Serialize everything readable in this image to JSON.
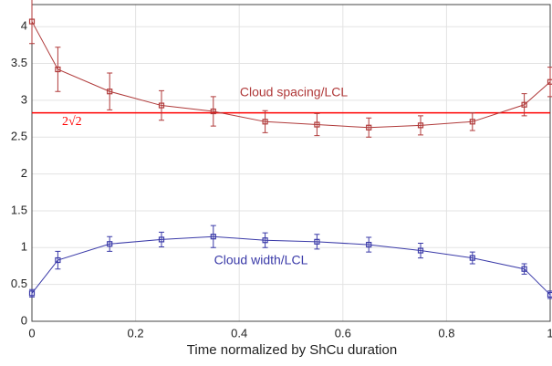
{
  "chart_data": {
    "type": "line",
    "xlabel": "Time normalized by ShCu duration",
    "x": [
      0,
      0.05,
      0.15,
      0.25,
      0.35,
      0.45,
      0.55,
      0.65,
      0.75,
      0.85,
      0.95,
      1
    ],
    "series": [
      {
        "name": "Cloud spacing/LCL",
        "color": "#b03a3a",
        "values": [
          4.07,
          3.42,
          3.12,
          2.93,
          2.85,
          2.71,
          2.67,
          2.63,
          2.66,
          2.71,
          2.94,
          3.25
        ],
        "errors": [
          0.3,
          0.3,
          0.25,
          0.2,
          0.2,
          0.15,
          0.15,
          0.13,
          0.13,
          0.12,
          0.15,
          0.2
        ]
      },
      {
        "name": "Cloud width/LCL",
        "color": "#3a3aa8",
        "values": [
          0.38,
          0.83,
          1.05,
          1.11,
          1.15,
          1.1,
          1.08,
          1.04,
          0.96,
          0.86,
          0.71,
          0.36
        ],
        "errors": [
          0.05,
          0.12,
          0.1,
          0.1,
          0.15,
          0.1,
          0.1,
          0.1,
          0.1,
          0.08,
          0.07,
          0.05
        ]
      }
    ],
    "hline": {
      "value": 2.83,
      "label": "2√2",
      "color": "#ff0000"
    },
    "xlim": [
      0,
      1
    ],
    "xticks": [
      0,
      0.2,
      0.4,
      0.6,
      0.8,
      1
    ],
    "ylim": [
      0,
      4.3
    ],
    "yticks": [
      0,
      0.5,
      1,
      1.5,
      2,
      2.5,
      3,
      3.5,
      4
    ],
    "grid": true
  }
}
